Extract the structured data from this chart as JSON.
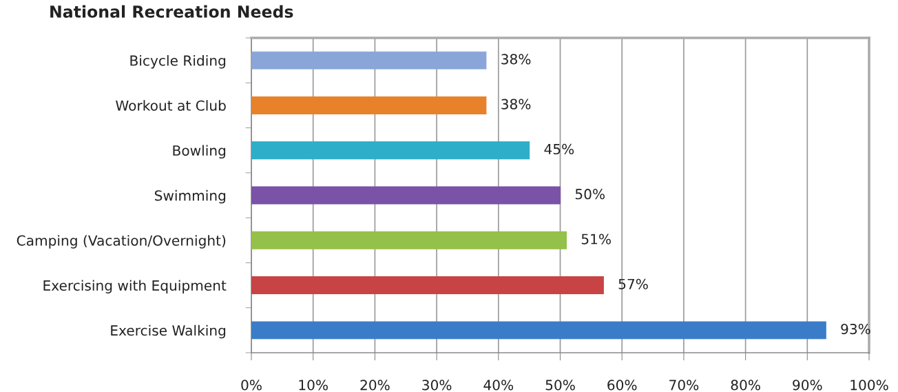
{
  "chart_data": {
    "type": "bar",
    "orientation": "horizontal",
    "title": "National Recreation Needs",
    "categories": [
      "Bicycle Riding",
      "Workout at Club",
      "Bowling",
      "Swimming",
      "Camping (Vacation/Overnight)",
      "Exercising with Equipment",
      "Exercise Walking"
    ],
    "values": [
      38,
      38,
      45,
      50,
      51,
      57,
      93
    ],
    "colors": [
      "#8aa6d8",
      "#e8822a",
      "#2eaec8",
      "#7a52a8",
      "#94c14a",
      "#c84444",
      "#3a7cc8"
    ],
    "value_labels": [
      "38%",
      "38%",
      "45%",
      "50%",
      "51%",
      "57%",
      "93%"
    ],
    "xlim": [
      0,
      100
    ],
    "xticks": [
      {
        "value": 0,
        "label": "0%"
      },
      {
        "value": 10,
        "label": "10%"
      },
      {
        "value": 20,
        "label": "20%"
      },
      {
        "value": 30,
        "label": "30%"
      },
      {
        "value": 40,
        "label": "40%"
      },
      {
        "value": 50,
        "label": "50%"
      },
      {
        "value": 60,
        "label": "60%"
      },
      {
        "value": 70,
        "label": "70%"
      },
      {
        "value": 80,
        "label": "80%"
      },
      {
        "value": 90,
        "label": "90%"
      },
      {
        "value": 100,
        "label": "100%"
      }
    ],
    "grid": "x",
    "legend": false
  }
}
